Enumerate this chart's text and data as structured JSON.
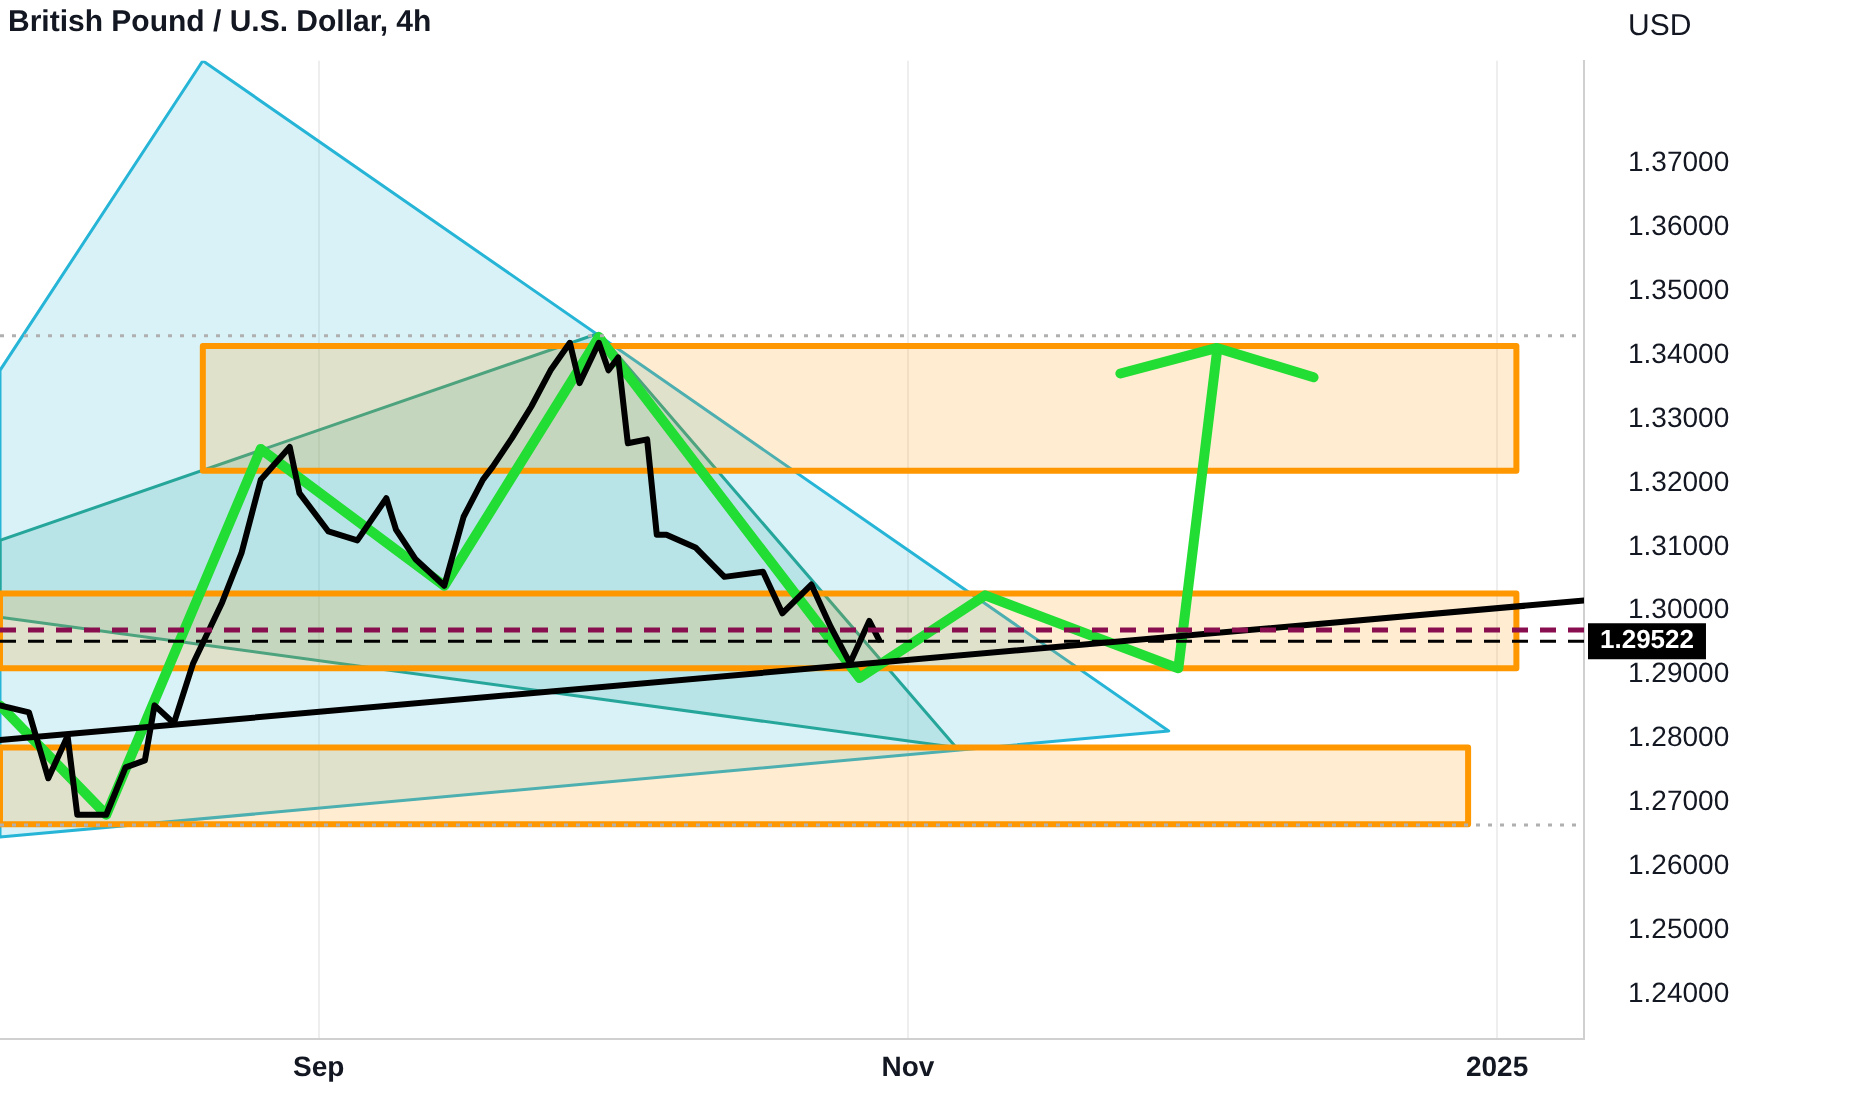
{
  "chart_data": {
    "type": "line",
    "title": "British Pound / U.S. Dollar, 4h",
    "ylabel": "USD",
    "xlim": [
      "2024-07-30",
      "2025-01-10"
    ],
    "xticks": [
      {
        "value": "2024-09-01",
        "label": "Sep"
      },
      {
        "value": "2024-11-01",
        "label": "Nov"
      },
      {
        "value": "2025-01-01",
        "label": "2025"
      }
    ],
    "ylim": [
      1.233,
      1.386
    ],
    "yticks": [
      {
        "value": 1.24,
        "label": "1.24000"
      },
      {
        "value": 1.25,
        "label": "1.25000"
      },
      {
        "value": 1.26,
        "label": "1.26000"
      },
      {
        "value": 1.27,
        "label": "1.27000"
      },
      {
        "value": 1.28,
        "label": "1.28000"
      },
      {
        "value": 1.29,
        "label": "1.29000"
      },
      {
        "value": 1.3,
        "label": "1.30000"
      },
      {
        "value": 1.31,
        "label": "1.31000"
      },
      {
        "value": 1.32,
        "label": "1.32000"
      },
      {
        "value": 1.33,
        "label": "1.33000"
      },
      {
        "value": 1.34,
        "label": "1.34000"
      },
      {
        "value": 1.35,
        "label": "1.35000"
      },
      {
        "value": 1.36,
        "label": "1.36000"
      },
      {
        "value": 1.37,
        "label": "1.37000"
      }
    ],
    "grid": "x",
    "legend": false,
    "marker": "none",
    "series": [
      {
        "type": "area",
        "color": "#26b5d6",
        "x": [
          "2024-07-30",
          "2024-08-20",
          "2024-11-28",
          "2024-07-30",
          "2024-07-30"
        ],
        "values": [
          1.3376,
          1.386,
          1.2812,
          1.2646,
          1.3376
        ]
      },
      {
        "type": "area",
        "color": "#26a69a",
        "x": [
          "2024-07-30",
          "2024-09-30",
          "2024-11-06",
          "2024-07-30",
          "2024-07-30"
        ],
        "values": [
          1.311,
          1.3434,
          1.2786,
          1.299,
          1.311
        ]
      },
      {
        "type": "area",
        "color": "#ff9800",
        "x": [
          "2024-08-20",
          "2025-01-03",
          "2025-01-03",
          "2024-08-20",
          "2024-08-20"
        ],
        "values": [
          1.3414,
          1.3414,
          1.3219,
          1.3219,
          1.3414
        ]
      },
      {
        "type": "area",
        "color": "#ff9800",
        "x": [
          "2024-07-30",
          "2025-01-03",
          "2025-01-03",
          "2024-07-30",
          "2024-07-30"
        ],
        "values": [
          1.3027,
          1.3027,
          1.291,
          1.291,
          1.3027
        ]
      },
      {
        "type": "area",
        "color": "#ff9800",
        "x": [
          "2024-07-30",
          "2024-12-29",
          "2024-12-29",
          "2024-07-30",
          "2024-07-30"
        ],
        "values": [
          1.2786,
          1.2786,
          1.2666,
          1.2666,
          1.2786
        ]
      },
      {
        "type": "line",
        "color": "#22dd33",
        "x": [
          "2024-07-30",
          "2024-08-10",
          "2024-08-26",
          "2024-09-14",
          "2024-09-30",
          "2024-10-27",
          "2024-11-09",
          "2024-11-29",
          "2024-12-03"
        ],
        "values": [
          1.2852,
          1.2681,
          1.3253,
          1.3039,
          1.3428,
          1.2895,
          1.3024,
          1.291,
          1.3405
        ]
      },
      {
        "type": "line",
        "color": "#22dd33",
        "x": [
          "2024-11-23",
          "2024-12-03",
          "2024-12-13"
        ],
        "values": [
          1.3371,
          1.3411,
          1.3365
        ]
      },
      {
        "type": "line",
        "color": "#000000",
        "x": [
          "2024-07-30",
          "2025-01-10"
        ],
        "values": [
          1.2798,
          1.3016
        ]
      },
      {
        "type": "line",
        "color": "#000000",
        "x": [
          "2024-07-30",
          "2024-08-02",
          "2024-08-04",
          "2024-08-06",
          "2024-08-07",
          "2024-08-10",
          "2024-08-12",
          "2024-08-14",
          "2024-08-15",
          "2024-08-17",
          "2024-08-19",
          "2024-08-22",
          "2024-08-24",
          "2024-08-26",
          "2024-08-29",
          "2024-08-30",
          "2024-09-02",
          "2024-09-05",
          "2024-09-08",
          "2024-09-09",
          "2024-09-11",
          "2024-09-14",
          "2024-09-16",
          "2024-09-18",
          "2024-09-19",
          "2024-09-21",
          "2024-09-23",
          "2024-09-25",
          "2024-09-27",
          "2024-09-28",
          "2024-09-30",
          "2024-10-01",
          "2024-10-02",
          "2024-10-03",
          "2024-10-05",
          "2024-10-06",
          "2024-10-07",
          "2024-10-10",
          "2024-10-13",
          "2024-10-17",
          "2024-10-19",
          "2024-10-22",
          "2024-10-24",
          "2024-10-26",
          "2024-10-28",
          "2024-10-29"
        ],
        "values": [
          1.2852,
          1.2841,
          1.2738,
          1.2804,
          1.2681,
          1.2681,
          1.2755,
          1.2766,
          1.2852,
          1.2824,
          1.2918,
          1.3013,
          1.309,
          1.3205,
          1.3256,
          1.3184,
          1.3124,
          1.311,
          1.3176,
          1.3127,
          1.3081,
          1.3039,
          1.3147,
          1.3205,
          1.3225,
          1.327,
          1.3319,
          1.3376,
          1.3419,
          1.3356,
          1.3419,
          1.3376,
          1.3396,
          1.3262,
          1.3268,
          1.3119,
          1.3119,
          1.3099,
          1.3053,
          1.3061,
          1.2996,
          1.3041,
          1.2975,
          1.2918,
          1.2984,
          1.2955
        ]
      }
    ],
    "ref_lines": [
      {
        "axis": "y",
        "value": 1.343,
        "color": "#b0b0b0",
        "line_style": "dotted"
      },
      {
        "axis": "y",
        "value": 1.2665,
        "color": "#b0b0b0",
        "line_style": "dotted"
      },
      {
        "axis": "y",
        "value": 1.297,
        "color": "#880e4f",
        "line_style": "dashed"
      },
      {
        "axis": "y",
        "value": 1.29522,
        "label": "1.29522",
        "color": "#000000",
        "line_style": "dashed"
      }
    ]
  }
}
